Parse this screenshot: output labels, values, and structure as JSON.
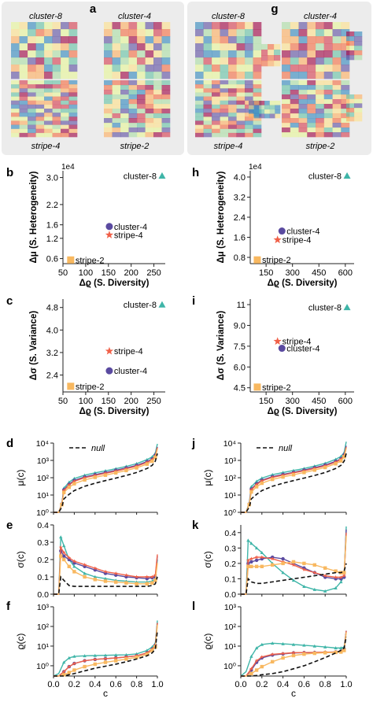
{
  "panel_letters": {
    "a": "a",
    "g": "g",
    "b": "b",
    "h": "h",
    "c": "c",
    "i": "i",
    "d": "d",
    "j": "j",
    "e": "e",
    "k": "k",
    "f": "f",
    "l": "l"
  },
  "heatmap_labels": {
    "left": {
      "top_left": "cluster-8",
      "top_right": "cluster-4",
      "bottom_left": "stripe-4",
      "bottom_right": "stripe-2"
    },
    "right": {
      "top_left": "cluster-8",
      "top_right": "cluster-4",
      "bottom_left": "stripe-4",
      "bottom_right": "stripe-2"
    }
  },
  "palette": [
    "#5e4fa2",
    "#3288bd",
    "#66c2a5",
    "#abdda4",
    "#e6f598",
    "#fee08b",
    "#fdae61",
    "#f46d43",
    "#d53e4f",
    "#9e0142"
  ],
  "series_colors": {
    "cluster-8": "#3fb5a8",
    "cluster-4": "#5a4aa0",
    "stripe-4": "#f06048",
    "stripe-2": "#f8b860",
    "null": "#111111"
  },
  "chart_data": [
    {
      "id": "b",
      "type": "scatter",
      "xlabel": "Δϱ (S. Diversity)",
      "ylabel": "Δμ (S. Heterogeneity)",
      "multiplier": "1e4",
      "xticks": [
        50,
        100,
        150,
        200,
        250
      ],
      "yticks": [
        0.6,
        1.2,
        1.6,
        2.2,
        3.0
      ],
      "xlim": [
        50,
        275
      ],
      "ylim": [
        0.45,
        3.2
      ],
      "points": [
        {
          "name": "cluster-8",
          "x": 268,
          "y": 3.05,
          "marker": "triangle"
        },
        {
          "name": "cluster-4",
          "x": 152,
          "y": 1.55,
          "marker": "circle"
        },
        {
          "name": "stripe-4",
          "x": 152,
          "y": 1.3,
          "marker": "star"
        },
        {
          "name": "stripe-2",
          "x": 67,
          "y": 0.56,
          "marker": "square"
        }
      ]
    },
    {
      "id": "h",
      "type": "scatter",
      "xlabel": "Δϱ (S. Diversity)",
      "ylabel": "Δμ (S. Heterogeneity)",
      "multiplier": "1e4",
      "xticks": [
        150,
        300,
        450,
        600
      ],
      "yticks": [
        0.8,
        1.6,
        2.4,
        3.2,
        4.0
      ],
      "xlim": [
        60,
        650
      ],
      "ylim": [
        0.55,
        4.25
      ],
      "points": [
        {
          "name": "cluster-8",
          "x": 610,
          "y": 4.05,
          "marker": "triangle"
        },
        {
          "name": "cluster-4",
          "x": 240,
          "y": 1.85,
          "marker": "circle"
        },
        {
          "name": "stripe-4",
          "x": 215,
          "y": 1.5,
          "marker": "star"
        },
        {
          "name": "stripe-2",
          "x": 100,
          "y": 0.7,
          "marker": "square"
        }
      ]
    },
    {
      "id": "c",
      "type": "scatter",
      "xlabel": "Δϱ (S. Diversity)",
      "ylabel": "Δσ (S. Variance)",
      "xticks": [
        50,
        100,
        150,
        200,
        250
      ],
      "yticks": [
        2.4,
        3.2,
        4.0,
        4.8
      ],
      "xlim": [
        50,
        275
      ],
      "ylim": [
        1.8,
        5.1
      ],
      "points": [
        {
          "name": "cluster-8",
          "x": 268,
          "y": 4.9,
          "marker": "triangle"
        },
        {
          "name": "stripe-4",
          "x": 152,
          "y": 3.25,
          "marker": "star"
        },
        {
          "name": "cluster-4",
          "x": 152,
          "y": 2.55,
          "marker": "circle"
        },
        {
          "name": "stripe-2",
          "x": 67,
          "y": 2.0,
          "marker": "square"
        }
      ]
    },
    {
      "id": "i",
      "type": "scatter",
      "xlabel": "Δϱ (S. Diversity)",
      "ylabel": "Δσ (S. Variance)",
      "xticks": [
        150,
        300,
        450,
        600
      ],
      "yticks": [
        4.5,
        6.0,
        7.5,
        9.0,
        10.5
      ],
      "xlim": [
        60,
        650
      ],
      "ylim": [
        4.2,
        10.9
      ],
      "points": [
        {
          "name": "cluster-8",
          "x": 610,
          "y": 10.3,
          "marker": "triangle"
        },
        {
          "name": "stripe-4",
          "x": 215,
          "y": 7.85,
          "marker": "star"
        },
        {
          "name": "cluster-4",
          "x": 240,
          "y": 7.35,
          "marker": "circle"
        },
        {
          "name": "stripe-2",
          "x": 100,
          "y": 4.55,
          "marker": "square"
        }
      ]
    },
    {
      "id": "d",
      "type": "line",
      "ylabel": "μ(c)",
      "yscale": "log",
      "ylim": [
        1,
        10000
      ],
      "yticks": [
        1,
        10,
        100,
        1000,
        10000
      ],
      "yticklabels": [
        "10⁰",
        "10¹",
        "10²",
        "10³",
        "10⁴"
      ],
      "legend": "null",
      "x": [
        0.0,
        0.05,
        0.08,
        0.1,
        0.15,
        0.2,
        0.3,
        0.4,
        0.5,
        0.6,
        0.7,
        0.8,
        0.9,
        0.95,
        0.98,
        1.0
      ],
      "series": [
        {
          "name": "cluster-8",
          "values": [
            1,
            1,
            3.2,
            25,
            55,
            90,
            140,
            190,
            250,
            330,
            450,
            650,
            1100,
            1600,
            2600,
            9000
          ]
        },
        {
          "name": "cluster-4",
          "values": [
            1,
            1,
            3,
            20,
            42,
            70,
            110,
            150,
            200,
            270,
            370,
            520,
            850,
            1200,
            2000,
            6000
          ]
        },
        {
          "name": "stripe-4",
          "values": [
            1,
            1,
            3,
            18,
            38,
            62,
            100,
            135,
            180,
            240,
            330,
            460,
            760,
            1100,
            1800,
            5500
          ]
        },
        {
          "name": "stripe-2",
          "values": [
            1,
            1,
            2.8,
            14,
            28,
            45,
            75,
            105,
            140,
            190,
            260,
            370,
            610,
            900,
            1500,
            4500
          ]
        },
        {
          "name": "null",
          "values": [
            1,
            1,
            2,
            6,
            11,
            18,
            32,
            48,
            68,
            95,
            135,
            200,
            340,
            520,
            900,
            2500
          ]
        }
      ]
    },
    {
      "id": "j",
      "type": "line",
      "ylabel": "μ(c)",
      "yscale": "log",
      "ylim": [
        1,
        10000
      ],
      "yticks": [
        1,
        10,
        100,
        1000,
        10000
      ],
      "yticklabels": [
        "10⁰",
        "10¹",
        "10²",
        "10³",
        "10⁴"
      ],
      "legend": "null",
      "x": [
        0.0,
        0.05,
        0.08,
        0.1,
        0.15,
        0.2,
        0.3,
        0.4,
        0.5,
        0.6,
        0.7,
        0.8,
        0.9,
        0.95,
        0.98,
        1.0
      ],
      "series": [
        {
          "name": "cluster-8",
          "values": [
            1,
            1,
            3.5,
            30,
            62,
            95,
            150,
            200,
            260,
            340,
            470,
            680,
            1150,
            1700,
            2800,
            12000
          ]
        },
        {
          "name": "cluster-4",
          "values": [
            1,
            1,
            3,
            22,
            45,
            72,
            115,
            155,
            205,
            275,
            380,
            540,
            880,
            1250,
            2100,
            7000
          ]
        },
        {
          "name": "stripe-4",
          "values": [
            1,
            1,
            3,
            20,
            40,
            66,
            105,
            140,
            190,
            250,
            345,
            480,
            790,
            1150,
            1900,
            6000
          ]
        },
        {
          "name": "stripe-2",
          "values": [
            1,
            1,
            2.8,
            15,
            30,
            48,
            80,
            110,
            148,
            200,
            275,
            390,
            640,
            940,
            1600,
            5000
          ]
        },
        {
          "name": "null",
          "values": [
            1,
            1,
            2,
            6,
            11,
            18,
            32,
            48,
            68,
            95,
            135,
            200,
            340,
            520,
            900,
            2500
          ]
        }
      ]
    },
    {
      "id": "e",
      "type": "line",
      "ylabel": "σ(c)",
      "ylim": [
        0,
        0.4
      ],
      "yticks": [
        0.0,
        0.1,
        0.2,
        0.3,
        0.4
      ],
      "x": [
        0.0,
        0.05,
        0.07,
        0.1,
        0.15,
        0.2,
        0.3,
        0.4,
        0.5,
        0.6,
        0.7,
        0.8,
        0.9,
        0.95,
        0.98,
        1.0
      ],
      "series": [
        {
          "name": "cluster-8",
          "values": [
            0,
            0,
            0.33,
            0.28,
            0.2,
            0.16,
            0.12,
            0.1,
            0.09,
            0.08,
            0.075,
            0.07,
            0.07,
            0.075,
            0.09,
            0.2
          ]
        },
        {
          "name": "cluster-4",
          "values": [
            0,
            0,
            0.25,
            0.22,
            0.2,
            0.18,
            0.16,
            0.14,
            0.12,
            0.11,
            0.1,
            0.095,
            0.09,
            0.095,
            0.1,
            0.22
          ]
        },
        {
          "name": "stripe-4",
          "values": [
            0,
            0,
            0.27,
            0.24,
            0.21,
            0.19,
            0.17,
            0.15,
            0.13,
            0.12,
            0.11,
            0.1,
            0.1,
            0.1,
            0.11,
            0.23
          ]
        },
        {
          "name": "stripe-2",
          "values": [
            0,
            0,
            0.22,
            0.2,
            0.16,
            0.13,
            0.1,
            0.085,
            0.075,
            0.07,
            0.065,
            0.06,
            0.06,
            0.065,
            0.08,
            0.18
          ]
        },
        {
          "name": "null",
          "values": [
            0,
            0,
            0.1,
            0.08,
            0.05,
            0.045,
            0.045,
            0.045,
            0.045,
            0.045,
            0.045,
            0.045,
            0.045,
            0.05,
            0.06,
            0.1
          ]
        }
      ]
    },
    {
      "id": "k",
      "type": "line",
      "ylabel": "σ(c)",
      "ylim": [
        0,
        0.45
      ],
      "yticks": [
        0.0,
        0.1,
        0.2,
        0.3,
        0.4
      ],
      "x": [
        0.0,
        0.05,
        0.07,
        0.1,
        0.15,
        0.2,
        0.3,
        0.4,
        0.5,
        0.6,
        0.7,
        0.8,
        0.9,
        0.95,
        0.98,
        1.0
      ],
      "series": [
        {
          "name": "cluster-8",
          "values": [
            0,
            0,
            0.35,
            0.33,
            0.3,
            0.27,
            0.2,
            0.14,
            0.09,
            0.05,
            0.03,
            0.02,
            0.04,
            0.08,
            0.12,
            0.44
          ]
        },
        {
          "name": "cluster-4",
          "values": [
            0,
            0,
            0.2,
            0.21,
            0.22,
            0.23,
            0.24,
            0.23,
            0.2,
            0.17,
            0.14,
            0.11,
            0.1,
            0.1,
            0.11,
            0.42
          ]
        },
        {
          "name": "stripe-4",
          "values": [
            0,
            0,
            0.22,
            0.23,
            0.24,
            0.24,
            0.23,
            0.21,
            0.19,
            0.16,
            0.14,
            0.12,
            0.11,
            0.11,
            0.12,
            0.4
          ]
        },
        {
          "name": "stripe-2",
          "values": [
            0,
            0,
            0.18,
            0.18,
            0.18,
            0.18,
            0.19,
            0.2,
            0.21,
            0.2,
            0.19,
            0.17,
            0.15,
            0.14,
            0.14,
            0.38
          ]
        },
        {
          "name": "null",
          "values": [
            0,
            0,
            0.1,
            0.08,
            0.07,
            0.07,
            0.08,
            0.09,
            0.1,
            0.11,
            0.12,
            0.13,
            0.14,
            0.14,
            0.15,
            0.2
          ]
        }
      ]
    },
    {
      "id": "f",
      "type": "line",
      "ylabel": "ϱ(c)",
      "yscale": "log",
      "ylim": [
        0.3,
        1000
      ],
      "yticks": [
        1,
        10,
        100,
        1000
      ],
      "yticklabels": [
        "10⁰",
        "10¹",
        "10²",
        "10³"
      ],
      "xlabel": "c",
      "xticks": [
        0.0,
        0.2,
        0.4,
        0.6,
        0.8,
        1.0
      ],
      "x": [
        0.0,
        0.05,
        0.1,
        0.15,
        0.2,
        0.3,
        0.4,
        0.5,
        0.6,
        0.7,
        0.8,
        0.9,
        0.95,
        0.98,
        1.0
      ],
      "series": [
        {
          "name": "cluster-8",
          "values": [
            0.3,
            0.4,
            1.5,
            2.5,
            3,
            3.2,
            3.3,
            3.4,
            3.5,
            3.6,
            4,
            6,
            9,
            14,
            200
          ]
        },
        {
          "name": "cluster-4",
          "values": [
            0.3,
            0.3,
            0.5,
            0.9,
            1.3,
            1.8,
            2.1,
            2.3,
            2.5,
            2.8,
            3.2,
            4.5,
            7,
            11,
            150
          ]
        },
        {
          "name": "stripe-4",
          "values": [
            0.3,
            0.3,
            0.5,
            0.9,
            1.3,
            1.8,
            2.1,
            2.3,
            2.5,
            2.8,
            3.2,
            4.5,
            7,
            11,
            150
          ]
        },
        {
          "name": "stripe-2",
          "values": [
            0.3,
            0.3,
            0.35,
            0.45,
            0.6,
            0.9,
            1.2,
            1.5,
            1.8,
            2.2,
            2.7,
            3.8,
            6,
            9,
            120
          ]
        },
        {
          "name": "null",
          "values": [
            0.3,
            0.3,
            0.3,
            0.35,
            0.4,
            0.55,
            0.75,
            0.95,
            1.2,
            1.6,
            2.2,
            3.2,
            4.5,
            7,
            60
          ]
        }
      ]
    },
    {
      "id": "l",
      "type": "line",
      "ylabel": "ϱ(c)",
      "yscale": "log",
      "ylim": [
        0.3,
        1000
      ],
      "yticks": [
        1,
        10,
        100,
        1000
      ],
      "yticklabels": [
        "10⁰",
        "10¹",
        "10²",
        "10³"
      ],
      "xlabel": "c",
      "xticks": [
        0.0,
        0.2,
        0.4,
        0.6,
        0.8,
        1.0
      ],
      "x": [
        0.0,
        0.05,
        0.1,
        0.15,
        0.2,
        0.3,
        0.4,
        0.5,
        0.6,
        0.7,
        0.8,
        0.9,
        0.95,
        0.98,
        1.0
      ],
      "series": [
        {
          "name": "cluster-8",
          "values": [
            0.3,
            0.5,
            3,
            8,
            12,
            14,
            13,
            12,
            11,
            10,
            9,
            8,
            8,
            9,
            60
          ]
        },
        {
          "name": "cluster-4",
          "values": [
            0.3,
            0.3,
            0.6,
            1.5,
            2.5,
            3.5,
            4,
            4.5,
            4.6,
            4.7,
            4.8,
            5,
            5.5,
            7,
            60
          ]
        },
        {
          "name": "stripe-4",
          "values": [
            0.3,
            0.3,
            0.7,
            1.8,
            2.8,
            3.8,
            4.2,
            4.6,
            4.7,
            4.8,
            4.9,
            5,
            5.5,
            7,
            60
          ]
        },
        {
          "name": "stripe-2",
          "values": [
            0.3,
            0.3,
            0.4,
            0.6,
            0.9,
            1.6,
            2.5,
            3.3,
            3.9,
            4.3,
            4.6,
            4.8,
            5,
            6,
            50
          ]
        },
        {
          "name": "null",
          "values": [
            0.3,
            0.3,
            0.3,
            0.32,
            0.35,
            0.4,
            0.5,
            0.7,
            1.0,
            1.6,
            2.6,
            4.5,
            6,
            8,
            30
          ]
        }
      ]
    }
  ]
}
